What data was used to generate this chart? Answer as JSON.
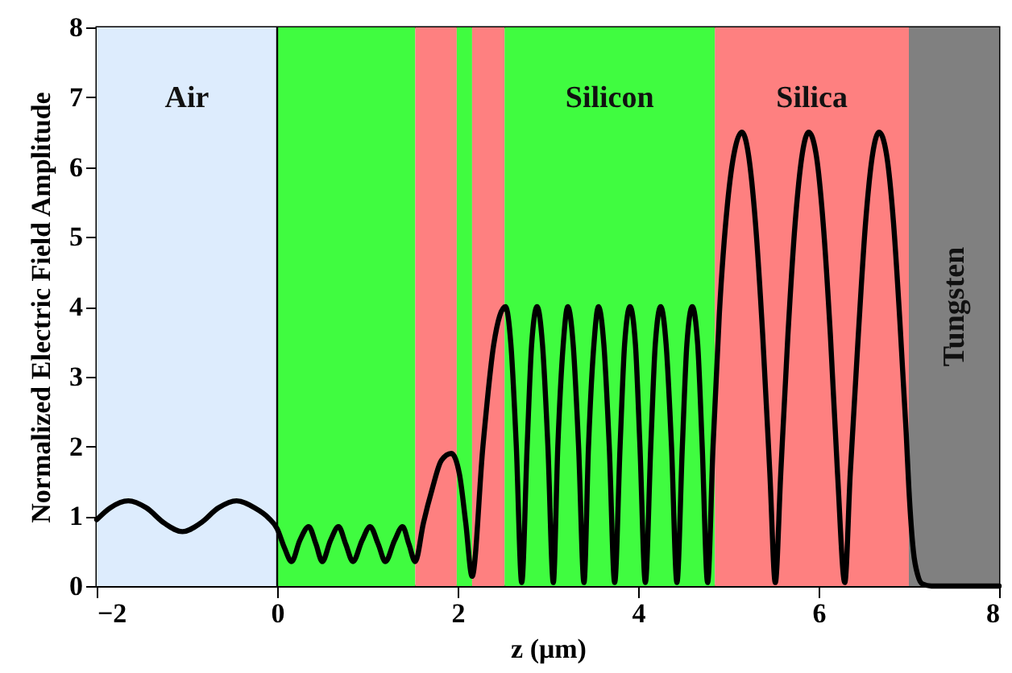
{
  "chart_data": {
    "type": "line",
    "xlabel": "z (μm)",
    "ylabel": "Normalized Electric Field Amplitude",
    "xlim": [
      -2,
      8
    ],
    "ylim": [
      0,
      8
    ],
    "xticks": [
      -2,
      0,
      2,
      4,
      6,
      8
    ],
    "yticks": [
      0,
      1,
      2,
      3,
      4,
      5,
      6,
      7,
      8
    ],
    "grid": false,
    "marker": "none",
    "line_style": "solid",
    "x": [
      -2,
      -1.85,
      -1.65,
      -1.45,
      -1.25,
      -1.05,
      -0.85,
      -0.65,
      -0.45,
      -0.25,
      -0.1,
      0,
      0.08,
      0.16,
      0.25,
      0.35,
      0.43,
      0.5,
      0.59,
      0.68,
      0.76,
      0.84,
      0.94,
      1.03,
      1.12,
      1.2,
      1.3,
      1.39,
      1.46,
      1.53,
      1.62,
      1.72,
      1.82,
      1.93,
      2.02,
      2.09,
      2.16,
      2.28,
      2.4,
      2.53,
      2.59,
      2.65,
      2.71,
      2.77,
      2.82,
      2.88,
      2.94,
      3.0,
      3.06,
      3.11,
      3.17,
      3.22,
      3.28,
      3.34,
      3.4,
      3.45,
      3.51,
      3.56,
      3.62,
      3.68,
      3.74,
      3.8,
      3.85,
      3.91,
      3.97,
      4.02,
      4.08,
      4.14,
      4.19,
      4.25,
      4.31,
      4.37,
      4.43,
      4.49,
      4.54,
      4.6,
      4.66,
      4.71,
      4.77,
      4.83,
      4.9,
      5.0,
      5.08,
      5.15,
      5.22,
      5.3,
      5.38,
      5.46,
      5.52,
      5.58,
      5.66,
      5.74,
      5.82,
      5.89,
      5.97,
      6.05,
      6.13,
      6.21,
      6.29,
      6.35,
      6.44,
      6.52,
      6.6,
      6.67,
      6.75,
      6.83,
      6.9,
      6.97,
      7.0,
      7.05,
      7.1,
      7.15,
      7.25,
      8
    ],
    "series": [
      {
        "color": "#000000",
        "values": [
          0.95,
          1.12,
          1.22,
          1.12,
          0.9,
          0.78,
          0.9,
          1.12,
          1.22,
          1.12,
          0.98,
          0.82,
          0.55,
          0.35,
          0.65,
          0.85,
          0.6,
          0.35,
          0.65,
          0.85,
          0.6,
          0.35,
          0.65,
          0.85,
          0.6,
          0.35,
          0.65,
          0.85,
          0.6,
          0.35,
          0.9,
          1.4,
          1.8,
          1.9,
          1.6,
          0.9,
          0.14,
          2.0,
          3.46,
          4.0,
          3.46,
          2.0,
          0.05,
          2.0,
          3.46,
          4.0,
          3.46,
          2.0,
          0.05,
          2.0,
          3.46,
          4.0,
          3.46,
          2.0,
          0.05,
          2.0,
          3.46,
          4.0,
          3.46,
          2.0,
          0.05,
          2.0,
          3.46,
          4.0,
          3.46,
          2.0,
          0.05,
          2.0,
          3.46,
          4.0,
          3.46,
          2.0,
          0.05,
          2.0,
          3.46,
          4.0,
          3.46,
          2.0,
          0.05,
          2.0,
          3.9,
          5.6,
          6.3,
          6.5,
          6.2,
          5.2,
          3.6,
          1.6,
          0.05,
          1.6,
          3.6,
          5.2,
          6.2,
          6.5,
          6.2,
          5.2,
          3.6,
          1.6,
          0.05,
          1.6,
          3.6,
          5.2,
          6.2,
          6.5,
          6.2,
          5.2,
          3.8,
          2.2,
          1.4,
          0.5,
          0.15,
          0.03,
          0,
          0
        ]
      }
    ],
    "bands": [
      {
        "axis": "x",
        "from": -2,
        "to": 0,
        "label": "Air",
        "color": "#ddecfd"
      },
      {
        "axis": "x",
        "from": 0,
        "to": 1.53,
        "label": null,
        "color": "#40fc40"
      },
      {
        "axis": "x",
        "from": 1.53,
        "to": 1.99,
        "label": null,
        "color": "#fe8080"
      },
      {
        "axis": "x",
        "from": 1.99,
        "to": 2.16,
        "label": null,
        "color": "#40fc40"
      },
      {
        "axis": "x",
        "from": 2.16,
        "to": 2.52,
        "label": null,
        "color": "#fe8080"
      },
      {
        "axis": "x",
        "from": 2.52,
        "to": 4.85,
        "label": "Silicon",
        "color": "#40fc40"
      },
      {
        "axis": "x",
        "from": 4.85,
        "to": 7.0,
        "label": "Silica",
        "color": "#fe8080"
      },
      {
        "axis": "x",
        "from": 7.0,
        "to": 8,
        "label": "Tungsten",
        "color": "#808080"
      }
    ],
    "ref_lines": [
      {
        "axis": "x",
        "value": 0,
        "label": null,
        "color": "#000000"
      }
    ]
  }
}
